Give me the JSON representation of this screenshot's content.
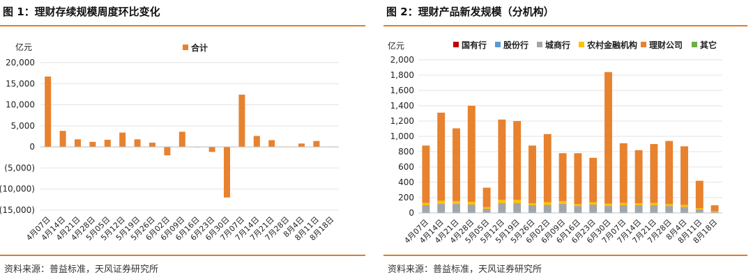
{
  "left": {
    "title": "图 1：理财存续规模周度环比变化",
    "source": "资料来源：普益标准，天风证券研究所",
    "chart_data": {
      "type": "bar",
      "unit_label": "亿元",
      "categories": [
        "4月07日",
        "4月14日",
        "4月21日",
        "4月28日",
        "5月05日",
        "5月12日",
        "5月19日",
        "5月26日",
        "6月02日",
        "6月09日",
        "6月16日",
        "6月23日",
        "6月30日",
        "7月07日",
        "7月14日",
        "7月21日",
        "7月28日",
        "8月4日",
        "8月11日",
        "8月18日"
      ],
      "series": [
        {
          "name": "合计",
          "color": "#e8822e",
          "values": [
            16700,
            3800,
            1800,
            1200,
            1700,
            3400,
            1800,
            1000,
            -2000,
            3600,
            0,
            -1200,
            -12000,
            12400,
            2600,
            1600,
            100,
            800,
            1400,
            100
          ]
        }
      ],
      "ylim": [
        -15000,
        20000
      ],
      "yticks": [
        20000,
        15000,
        10000,
        5000,
        0,
        -5000,
        -10000,
        -15000
      ],
      "ytick_labels": [
        "20,000",
        "15,000",
        "10,000",
        "5,000",
        "0",
        "(5,000)",
        "(10,000)",
        "(15,000)"
      ],
      "legend_position": "top-center",
      "grid": true
    }
  },
  "right": {
    "title": "图 2：理财产品新发规模（分机构）",
    "source": "资料来源：普益标准，天风证券研究所",
    "chart_data": {
      "type": "stacked-bar",
      "unit_label": "亿元",
      "categories": [
        "4月07日",
        "4月14日",
        "4月21日",
        "4月28日",
        "5月05日",
        "5月12日",
        "5月19日",
        "5月26日",
        "6月02日",
        "6月09日",
        "6月16日",
        "6月23日",
        "6月30日",
        "7月07日",
        "7月14日",
        "7月21日",
        "7月28日",
        "8月4日",
        "8月11日",
        "8月18日"
      ],
      "series": [
        {
          "name": "国有行",
          "color": "#c00000",
          "values": [
            0,
            0,
            0,
            0,
            0,
            0,
            0,
            0,
            0,
            0,
            0,
            0,
            0,
            0,
            0,
            0,
            0,
            0,
            0,
            0
          ]
        },
        {
          "name": "股份行",
          "color": "#5b9bd5",
          "values": [
            10,
            10,
            10,
            10,
            5,
            10,
            10,
            10,
            10,
            10,
            10,
            10,
            10,
            10,
            10,
            10,
            10,
            10,
            5,
            3
          ]
        },
        {
          "name": "城商行",
          "color": "#a5a5a5",
          "values": [
            90,
            110,
            110,
            100,
            50,
            120,
            120,
            90,
            95,
            110,
            80,
            100,
            80,
            90,
            90,
            90,
            80,
            70,
            40,
            10
          ]
        },
        {
          "name": "农村金融机构",
          "color": "#ffc000",
          "values": [
            30,
            40,
            35,
            35,
            20,
            40,
            40,
            25,
            35,
            35,
            25,
            30,
            30,
            30,
            25,
            30,
            25,
            25,
            15,
            7
          ]
        },
        {
          "name": "理财公司",
          "color": "#e8822e",
          "values": [
            750,
            1150,
            950,
            1255,
            255,
            1050,
            1030,
            755,
            890,
            625,
            665,
            580,
            1720,
            780,
            695,
            770,
            825,
            765,
            360,
            80
          ]
        },
        {
          "name": "其它",
          "color": "#70ad47",
          "values": [
            0,
            0,
            0,
            0,
            0,
            0,
            0,
            0,
            0,
            0,
            0,
            0,
            0,
            0,
            0,
            0,
            0,
            0,
            0,
            0
          ]
        }
      ],
      "ylim": [
        0,
        2000
      ],
      "yticks": [
        0,
        200,
        400,
        600,
        800,
        1000,
        1200,
        1400,
        1600,
        1800,
        2000
      ],
      "ytick_labels": [
        "0",
        "200",
        "400",
        "600",
        "800",
        "1,000",
        "1,200",
        "1,400",
        "1,600",
        "1,800",
        "2,000"
      ],
      "legend_position": "top",
      "grid": true
    }
  }
}
